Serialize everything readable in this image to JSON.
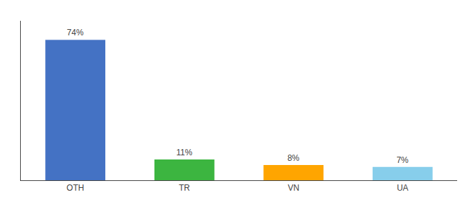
{
  "chart_data": {
    "type": "bar",
    "categories": [
      "OTH",
      "TR",
      "VN",
      "UA"
    ],
    "values": [
      74,
      11,
      8,
      7
    ],
    "value_labels": [
      "74%",
      "11%",
      "8%",
      "7%"
    ],
    "data_labels": true,
    "colors": [
      "#4472C4",
      "#3CB540",
      "#FFA500",
      "#87CEEB"
    ],
    "ylim": [
      0,
      84
    ],
    "grid": false,
    "tick_labels": "x"
  }
}
